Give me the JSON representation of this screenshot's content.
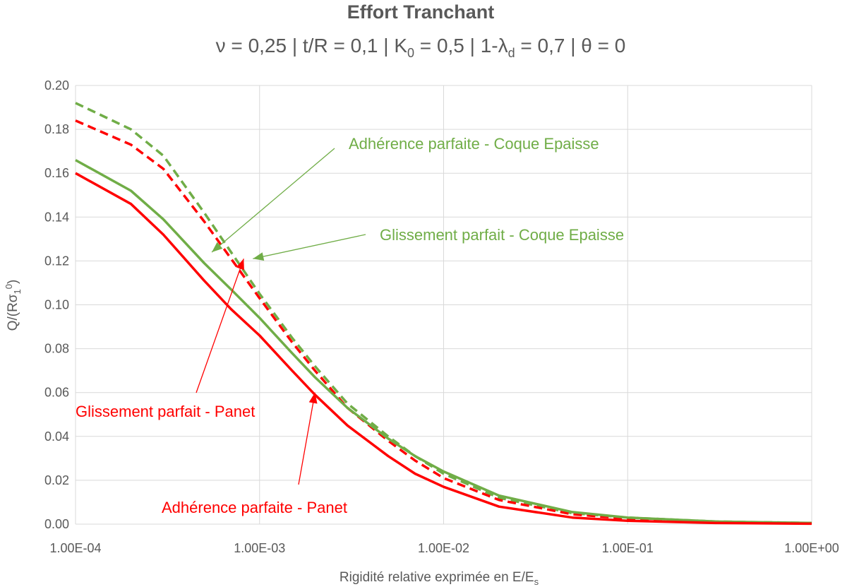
{
  "colors": {
    "green": "#70ad47",
    "red": "#ff0000",
    "text": "#595959",
    "grid": "#d9d9d9"
  },
  "chart_data": {
    "type": "line",
    "title": "Effort Tranchant",
    "subtitle": {
      "p1": "ν = 0,25 | t/R = 0,1 | K",
      "p1_sub": "0",
      "p2": " = 0,5 | 1-λ",
      "p2_sub": "d",
      "p3": " = 0,7 | θ = 0"
    },
    "xlabel": {
      "main": "Rigidité relative exprimée en E/E",
      "sub": "s"
    },
    "ylabel": {
      "a": "Q/(Rσ",
      "sub": "1",
      "sup": "0",
      "b": ")"
    },
    "x_scale": "log",
    "xlim": [
      0.0001,
      1
    ],
    "ylim": [
      0,
      0.2
    ],
    "grid": true,
    "x_ticks": [
      {
        "value": 0.0001,
        "label": "1.00E-04"
      },
      {
        "value": 0.001,
        "label": "1.00E-03"
      },
      {
        "value": 0.01,
        "label": "1.00E-02"
      },
      {
        "value": 0.1,
        "label": "1.00E-01"
      },
      {
        "value": 1,
        "label": "1.00E+00"
      }
    ],
    "y_ticks": [
      "0.00",
      "0.02",
      "0.04",
      "0.06",
      "0.08",
      "0.10",
      "0.12",
      "0.14",
      "0.16",
      "0.18",
      "0.20"
    ],
    "series": [
      {
        "key": "adh_coque",
        "color": "#70ad47",
        "dash": true,
        "x": [
          0.0001,
          0.0002,
          0.0003,
          0.0005,
          0.0007,
          0.001,
          0.0015,
          0.002,
          0.003,
          0.005,
          0.007,
          0.01,
          0.02,
          0.05,
          0.1,
          0.3,
          1
        ],
        "y": [
          0.192,
          0.18,
          0.168,
          0.142,
          0.124,
          0.105,
          0.085,
          0.072,
          0.055,
          0.04,
          0.031,
          0.023,
          0.012,
          0.005,
          0.003,
          0.0012,
          0.0005
        ]
      },
      {
        "key": "gliss_coque",
        "color": "#ff0000",
        "dash": true,
        "x": [
          0.0001,
          0.0002,
          0.0003,
          0.0005,
          0.0007,
          0.001,
          0.0015,
          0.002,
          0.003,
          0.005,
          0.007,
          0.01,
          0.02,
          0.05,
          0.1,
          0.3,
          1
        ],
        "y": [
          0.184,
          0.173,
          0.162,
          0.138,
          0.121,
          0.103,
          0.083,
          0.07,
          0.053,
          0.038,
          0.029,
          0.021,
          0.011,
          0.0045,
          0.0025,
          0.001,
          0.0004
        ]
      },
      {
        "key": "gliss_panet",
        "color": "#70ad47",
        "dash": false,
        "x": [
          0.0001,
          0.0002,
          0.0003,
          0.0005,
          0.0007,
          0.001,
          0.0015,
          0.002,
          0.003,
          0.005,
          0.007,
          0.01,
          0.02,
          0.05,
          0.1,
          0.3,
          1
        ],
        "y": [
          0.166,
          0.152,
          0.139,
          0.119,
          0.107,
          0.094,
          0.078,
          0.067,
          0.053,
          0.039,
          0.031,
          0.024,
          0.013,
          0.0055,
          0.003,
          0.0012,
          0.0005
        ]
      },
      {
        "key": "adh_panet",
        "color": "#ff0000",
        "dash": false,
        "x": [
          0.0001,
          0.0002,
          0.0003,
          0.0005,
          0.0007,
          0.001,
          0.0015,
          0.002,
          0.003,
          0.005,
          0.007,
          0.01,
          0.02,
          0.05,
          0.1,
          0.3,
          1
        ],
        "y": [
          0.16,
          0.146,
          0.132,
          0.111,
          0.098,
          0.086,
          0.07,
          0.059,
          0.045,
          0.031,
          0.023,
          0.017,
          0.008,
          0.003,
          0.0015,
          0.0005,
          0.0002
        ]
      }
    ],
    "annotations": [
      {
        "text": "Adhérence parfaite - Coque Epaisse",
        "color": "#70ad47",
        "cls": "ann-green",
        "target": [
          0.00055,
          0.124
        ]
      },
      {
        "text": "Glissement parfait - Coque Epaisse",
        "color": "#70ad47",
        "cls": "ann-green",
        "target": [
          0.00092,
          0.121
        ]
      },
      {
        "text": "Glissement parfait - Panet",
        "color": "#ff0000",
        "cls": "ann-red",
        "target": [
          0.00082,
          0.121
        ]
      },
      {
        "text": "Adhérence parfaite - Panet",
        "color": "#ff0000",
        "cls": "ann-red",
        "target": [
          0.002,
          0.06
        ]
      }
    ]
  }
}
